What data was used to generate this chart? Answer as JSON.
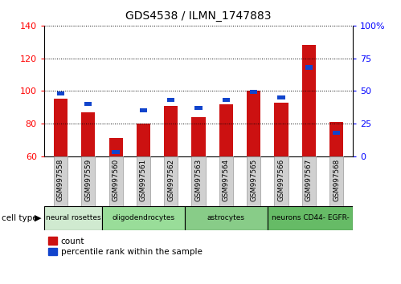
{
  "title": "GDS4538 / ILMN_1747883",
  "samples": [
    "GSM997558",
    "GSM997559",
    "GSM997560",
    "GSM997561",
    "GSM997562",
    "GSM997563",
    "GSM997564",
    "GSM997565",
    "GSM997566",
    "GSM997567",
    "GSM997568"
  ],
  "red_values": [
    95,
    87,
    71,
    80,
    91,
    84,
    92,
    100,
    93,
    128,
    81
  ],
  "blue_values": [
    48,
    40,
    3,
    35,
    43,
    37,
    43,
    49,
    45,
    68,
    18
  ],
  "ylim_left": [
    60,
    140
  ],
  "ylim_right": [
    0,
    100
  ],
  "yticks_left": [
    60,
    80,
    100,
    120,
    140
  ],
  "yticks_right": [
    0,
    25,
    50,
    75,
    100
  ],
  "ytick_labels_right": [
    "0",
    "25",
    "50",
    "75",
    "100%"
  ],
  "cell_type_groups": [
    {
      "label": "neural rosettes",
      "start": 0,
      "end": 2,
      "color": "#cceecc"
    },
    {
      "label": "oligodendrocytes",
      "start": 2,
      "end": 5,
      "color": "#99dd99"
    },
    {
      "label": "astrocytes",
      "start": 5,
      "end": 8,
      "color": "#88cc88"
    },
    {
      "label": "neurons CD44- EGFR-",
      "start": 8,
      "end": 11,
      "color": "#66bb66"
    }
  ],
  "bar_color": "#cc1111",
  "blue_color": "#1144cc",
  "gray_tick_bg": "#d0d0d0",
  "cell_type_label": "cell type",
  "legend_count": "count",
  "legend_percentile": "percentile rank within the sample",
  "bar_width": 0.5
}
